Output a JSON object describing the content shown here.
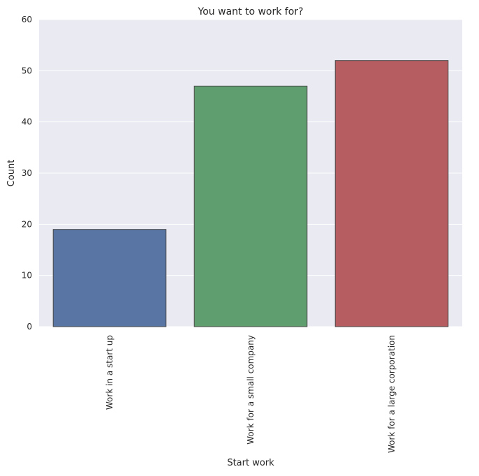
{
  "chart_data": {
    "type": "bar",
    "title": "You want to work for?",
    "xlabel": "Start work",
    "ylabel": "Count",
    "categories": [
      "Work in a start up",
      "Work for a small company",
      "Work for a large corporation"
    ],
    "values": [
      19,
      47,
      52
    ],
    "colors": [
      "#5875a4",
      "#5f9e6e",
      "#b55d60"
    ],
    "edge_color": "#4a4a4a",
    "ylim": [
      0,
      60
    ],
    "yticks": [
      "0",
      "10",
      "20",
      "30",
      "40",
      "50",
      "60"
    ],
    "background_color": "#eaeaf2",
    "grid": true,
    "grid_color": "#ffffff"
  }
}
